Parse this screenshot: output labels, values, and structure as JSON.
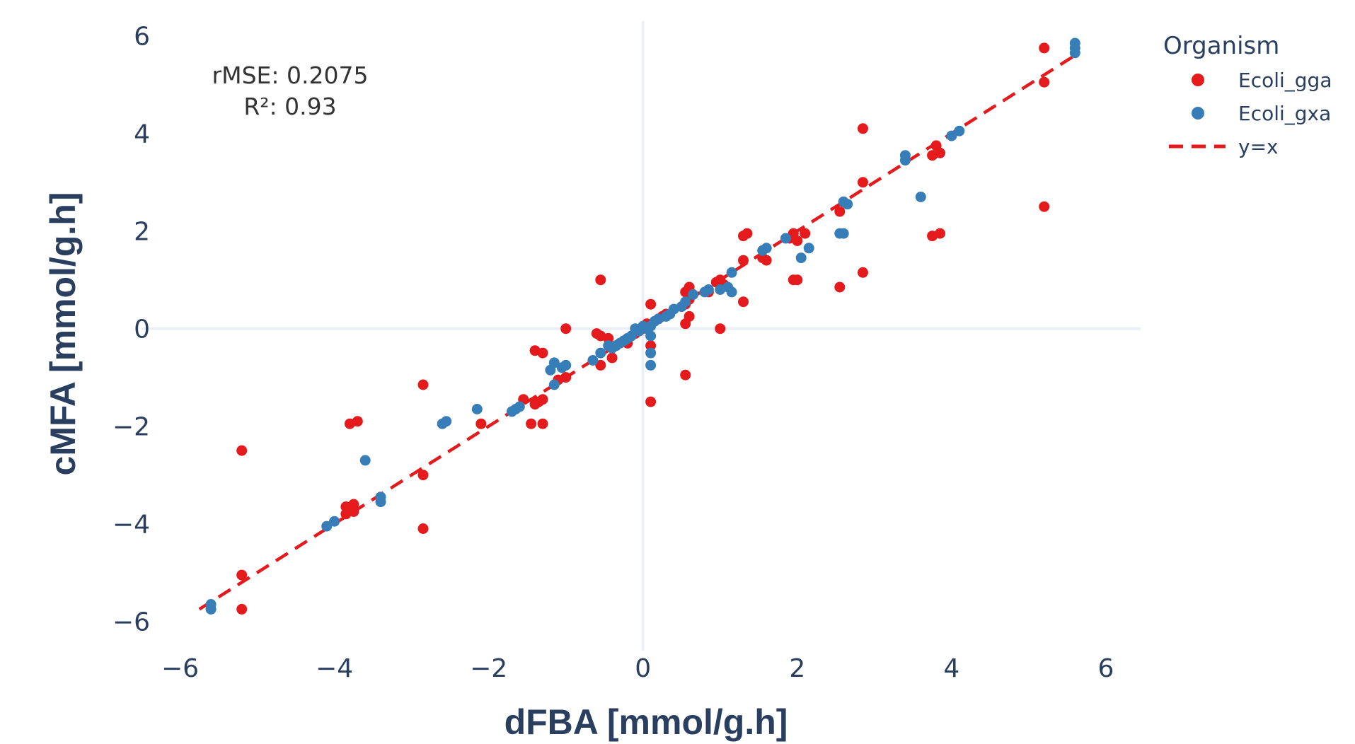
{
  "chart_data": {
    "type": "scatter",
    "xlabel": "dFBA [mmol/g.h]",
    "ylabel": "cMFA [mmol/g.h]",
    "xlim": [
      -6.5,
      6.45
    ],
    "ylim": [
      -6.6,
      6.3
    ],
    "x_ticks": [
      -6,
      -4,
      -2,
      0,
      2,
      4,
      6
    ],
    "y_ticks": [
      -6,
      -4,
      -2,
      0,
      2,
      4,
      6
    ],
    "x_tick_labels": [
      "−6",
      "−4",
      "−2",
      "0",
      "2",
      "4",
      "6"
    ],
    "y_tick_labels": [
      "−6",
      "−4",
      "−2",
      "0",
      "2",
      "4",
      "6"
    ],
    "zero_lines": true,
    "grid": false,
    "annotations": [
      "rMSE: 0.2075",
      "R²: 0.93"
    ],
    "legend": {
      "title": "Organism",
      "position": "top-right"
    },
    "series": [
      {
        "name": "Ecoli_gga",
        "color": "#e41a1c",
        "points": [
          [
            5.2,
            5.75
          ],
          [
            5.2,
            5.05
          ],
          [
            5.2,
            2.5
          ],
          [
            2.85,
            4.1
          ],
          [
            2.85,
            3.0
          ],
          [
            2.85,
            1.15
          ],
          [
            3.8,
            3.75
          ],
          [
            3.75,
            3.55
          ],
          [
            3.85,
            3.6
          ],
          [
            3.75,
            1.9
          ],
          [
            3.85,
            1.95
          ],
          [
            2.55,
            2.4
          ],
          [
            2.55,
            0.85
          ],
          [
            1.3,
            1.9
          ],
          [
            1.35,
            1.95
          ],
          [
            1.9,
            1.85
          ],
          [
            1.95,
            1.95
          ],
          [
            2.1,
            1.95
          ],
          [
            2.0,
            1.8
          ],
          [
            1.95,
            1.0
          ],
          [
            2.0,
            1.0
          ],
          [
            1.55,
            1.45
          ],
          [
            1.6,
            1.4
          ],
          [
            1.3,
            1.4
          ],
          [
            1.3,
            0.55
          ],
          [
            1.0,
            0.0
          ],
          [
            1.0,
            1.0
          ],
          [
            0.95,
            0.95
          ],
          [
            1.05,
            0.9
          ],
          [
            0.85,
            0.75
          ],
          [
            0.6,
            0.85
          ],
          [
            0.55,
            0.75
          ],
          [
            0.6,
            0.6
          ],
          [
            0.55,
            0.5
          ],
          [
            0.6,
            0.25
          ],
          [
            0.55,
            0.1
          ],
          [
            0.55,
            -0.95
          ],
          [
            0.3,
            0.3
          ],
          [
            0.25,
            0.25
          ],
          [
            0.2,
            0.2
          ],
          [
            0.1,
            0.5
          ],
          [
            0.1,
            -0.35
          ],
          [
            0.1,
            -1.5
          ],
          [
            0.05,
            0.1
          ],
          [
            0.0,
            0.0
          ],
          [
            -0.05,
            -0.05
          ],
          [
            -0.1,
            -0.1
          ],
          [
            -0.2,
            -0.3
          ],
          [
            -0.35,
            -0.35
          ],
          [
            -0.45,
            -0.2
          ],
          [
            -0.55,
            -0.15
          ],
          [
            -0.6,
            -0.1
          ],
          [
            -0.55,
            1.0
          ],
          [
            -0.4,
            -0.6
          ],
          [
            -0.55,
            -0.75
          ],
          [
            -1.0,
            0.0
          ],
          [
            -1.0,
            -1.0
          ],
          [
            -1.1,
            -1.05
          ],
          [
            -1.3,
            -0.5
          ],
          [
            -1.4,
            -0.45
          ],
          [
            -1.3,
            -1.45
          ],
          [
            -1.35,
            -1.5
          ],
          [
            -1.55,
            -1.45
          ],
          [
            -1.4,
            -1.55
          ],
          [
            -1.3,
            -1.95
          ],
          [
            -1.45,
            -1.95
          ],
          [
            -2.1,
            -1.95
          ],
          [
            -2.85,
            -1.15
          ],
          [
            -2.85,
            -3.0
          ],
          [
            -2.85,
            -4.1
          ],
          [
            -3.8,
            -1.95
          ],
          [
            -3.7,
            -1.9
          ],
          [
            -3.75,
            -3.6
          ],
          [
            -3.85,
            -3.65
          ],
          [
            -3.75,
            -3.75
          ],
          [
            -3.85,
            -3.8
          ],
          [
            -5.2,
            -2.5
          ],
          [
            -5.2,
            -5.05
          ],
          [
            -5.2,
            -5.75
          ]
        ]
      },
      {
        "name": "Ecoli_gxa",
        "color": "#377eb8",
        "points": [
          [
            5.6,
            5.85
          ],
          [
            5.6,
            5.75
          ],
          [
            5.6,
            5.65
          ],
          [
            4.1,
            4.05
          ],
          [
            4.0,
            3.95
          ],
          [
            3.4,
            3.55
          ],
          [
            3.4,
            3.45
          ],
          [
            3.6,
            2.7
          ],
          [
            2.6,
            2.6
          ],
          [
            2.65,
            2.55
          ],
          [
            2.6,
            1.95
          ],
          [
            2.55,
            1.95
          ],
          [
            2.15,
            1.65
          ],
          [
            2.05,
            1.45
          ],
          [
            1.85,
            1.85
          ],
          [
            1.6,
            1.65
          ],
          [
            1.55,
            1.6
          ],
          [
            1.15,
            1.15
          ],
          [
            1.1,
            0.85
          ],
          [
            1.15,
            0.75
          ],
          [
            1.0,
            0.8
          ],
          [
            0.85,
            0.8
          ],
          [
            0.8,
            0.75
          ],
          [
            0.65,
            0.7
          ],
          [
            0.55,
            0.55
          ],
          [
            0.5,
            0.45
          ],
          [
            0.4,
            0.4
          ],
          [
            0.35,
            0.3
          ],
          [
            0.3,
            0.25
          ],
          [
            0.2,
            0.2
          ],
          [
            0.15,
            0.15
          ],
          [
            0.1,
            0.05
          ],
          [
            0.1,
            -0.15
          ],
          [
            0.1,
            -0.5
          ],
          [
            0.1,
            -0.75
          ],
          [
            0.05,
            0.0
          ],
          [
            0.0,
            0.05
          ],
          [
            -0.05,
            -0.05
          ],
          [
            -0.1,
            0.0
          ],
          [
            -0.15,
            -0.15
          ],
          [
            -0.2,
            -0.2
          ],
          [
            -0.25,
            -0.25
          ],
          [
            -0.3,
            -0.3
          ],
          [
            -0.35,
            -0.35
          ],
          [
            -0.4,
            -0.4
          ],
          [
            -0.45,
            -0.35
          ],
          [
            -0.55,
            -0.5
          ],
          [
            -0.65,
            -0.65
          ],
          [
            -1.0,
            -0.75
          ],
          [
            -1.05,
            -0.8
          ],
          [
            -1.15,
            -0.7
          ],
          [
            -1.2,
            -0.85
          ],
          [
            -1.15,
            -1.15
          ],
          [
            -1.6,
            -1.6
          ],
          [
            -1.65,
            -1.65
          ],
          [
            -1.7,
            -1.7
          ],
          [
            -2.15,
            -1.65
          ],
          [
            -2.6,
            -1.95
          ],
          [
            -2.55,
            -1.9
          ],
          [
            -3.6,
            -2.7
          ],
          [
            -3.4,
            -3.45
          ],
          [
            -3.4,
            -3.55
          ],
          [
            -4.0,
            -3.95
          ],
          [
            -4.1,
            -4.05
          ],
          [
            -5.6,
            -5.65
          ],
          [
            -5.6,
            -5.75
          ]
        ]
      }
    ],
    "reference_line": {
      "name": "y=x",
      "color": "#e41a1c",
      "x": [
        -5.75,
        5.65
      ],
      "y": [
        -5.75,
        5.65
      ],
      "dash": "dashed"
    }
  }
}
